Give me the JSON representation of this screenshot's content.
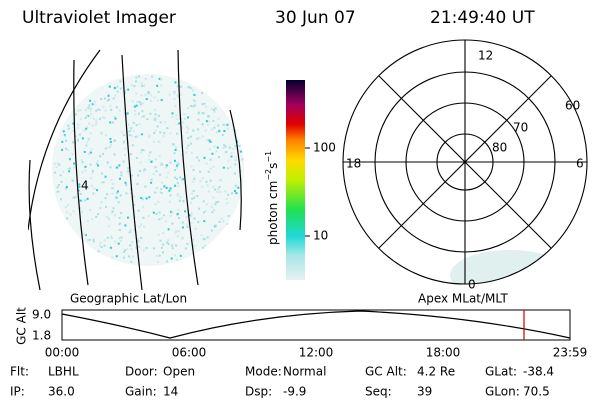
{
  "header": {
    "title": "Ultraviolet Imager",
    "date": "30 Jun 07",
    "time": "21:49:40 UT"
  },
  "colorbar": {
    "label": [
      "photon cm",
      "−2",
      "s",
      "−1"
    ],
    "ticks": [
      "100",
      "10"
    ]
  },
  "geo_panel": {
    "caption": "Geographic Lat/Lon",
    "line_label": "4"
  },
  "polar_panel": {
    "caption": "Apex MLat/MLT",
    "mlt_labels": [
      "12",
      "18",
      "6",
      "0"
    ],
    "mlat_labels": [
      "60",
      "70",
      "80"
    ]
  },
  "altitude": {
    "ylabel": "GC Alt",
    "yticks": [
      "9.0",
      "1.8"
    ],
    "xticks": [
      "00:00",
      "06:00",
      "12:00",
      "18:00",
      "23:59"
    ]
  },
  "footer": {
    "rows": [
      [
        [
          "Flt:",
          "LBHL"
        ],
        [
          "Door:",
          "Open"
        ],
        [
          "Mode:",
          "Normal"
        ],
        [
          "GC Alt:",
          "4.2 Re"
        ],
        [
          "GLat:",
          "-38.4"
        ]
      ],
      [
        [
          "IP:",
          "36.0"
        ],
        [
          "Gain:",
          "14"
        ],
        [
          "Dsp:",
          "-9.9"
        ],
        [
          "Seq:",
          "39"
        ],
        [
          "GLon:",
          "70.5"
        ]
      ]
    ]
  }
}
